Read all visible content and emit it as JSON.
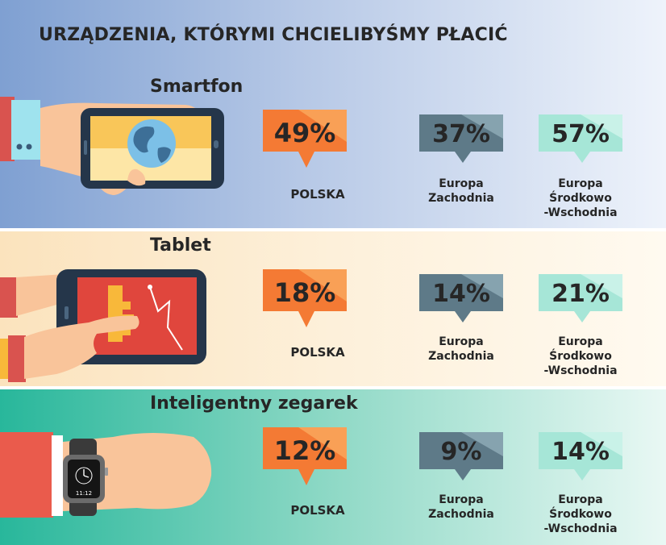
{
  "title": "URZĄDZENIA, KTÓRYMI CHCIELIBYŚMY PŁACIĆ",
  "colors": {
    "polska": "#f47a34",
    "zachodnia": "#5e7a88",
    "srodkowo": "#a6e6d7"
  },
  "labels": {
    "polska": "POLSKA",
    "zachodnia_1": "Europa",
    "zachodnia_2": "Zachodnia",
    "srodkowo_1": "Europa",
    "srodkowo_2": "Środkowo",
    "srodkowo_3": "-Wschodnia"
  },
  "watch_time": "11:12",
  "chart_data": {
    "type": "table",
    "title": "URZĄDZENIA, KTÓRYMI CHCIELIBYŚMY PŁACIĆ",
    "columns": [
      "POLSKA",
      "Europa Zachodnia",
      "Europa Środkowo-Wschodnia"
    ],
    "rows": [
      {
        "device": "Smartfon",
        "values": [
          49,
          37,
          57
        ],
        "display": [
          "49%",
          "37%",
          "57%"
        ]
      },
      {
        "device": "Tablet",
        "values": [
          18,
          14,
          21
        ],
        "display": [
          "18%",
          "14%",
          "21%"
        ]
      },
      {
        "device": "Inteligentny zegarek",
        "values": [
          12,
          9,
          14
        ],
        "display": [
          "12%",
          "9%",
          "14%"
        ]
      }
    ]
  }
}
